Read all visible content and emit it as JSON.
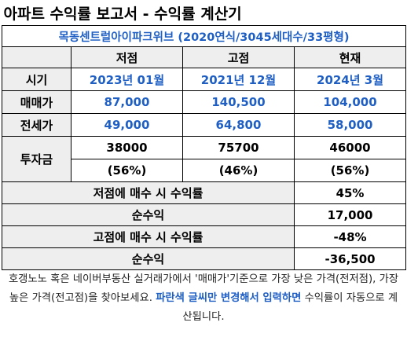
{
  "report": {
    "title": "아파트 수익률 보고서 - 수익률 계산기",
    "subtitle": "목동센트럴아이파크위브 (2020연식/3045세대수/33평형)",
    "columns": [
      "저점",
      "고점",
      "현재"
    ],
    "rows": [
      {
        "label": "시기",
        "values": [
          "2023년 01월",
          "2021년 12월",
          "2024년 3월"
        ]
      },
      {
        "label": "매매가",
        "values": [
          "87,000",
          "140,500",
          "104,000"
        ]
      },
      {
        "label": "전세가",
        "values": [
          "49,000",
          "64,800",
          "58,000"
        ]
      }
    ],
    "investment": {
      "label": "투자금",
      "values": [
        "38000",
        "75700",
        "46000"
      ],
      "ratios": [
        "(56%)",
        "(46%)",
        "(56%)"
      ]
    },
    "calc": [
      {
        "label": "저점에 매수 시 수익률",
        "value": "45%"
      },
      {
        "label": "순수익",
        "value": "17,000"
      },
      {
        "label": "고점에 매수 시 수익률",
        "value": "-48%"
      },
      {
        "label": "순수익",
        "value": "-36,500"
      }
    ]
  },
  "note": {
    "part1": "호갱노노 혹은 네이버부동산 실거래가에서 '매매가'기준으로 가장 낮은 가격(전저점), 가장 높은 가격(전고점)을 찾아보세요. ",
    "highlight": "파란색 글씨만 변경해서 입력하면",
    "part2": " 수익률이 자동으로 계산됩니다."
  },
  "colors": {
    "accent_blue": "#1f5fc4",
    "header_fill": "#eeeeee"
  }
}
